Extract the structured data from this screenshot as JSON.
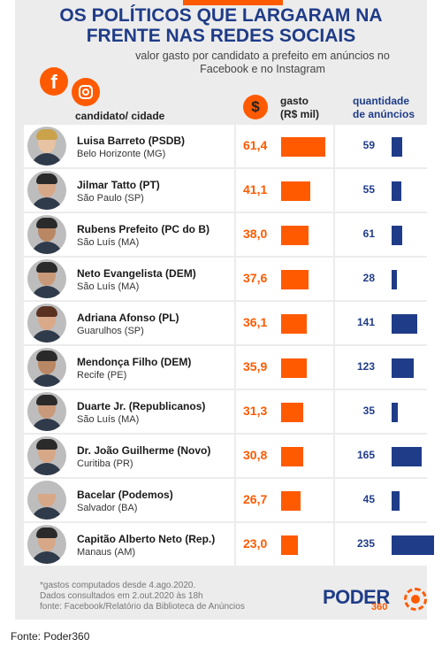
{
  "title_line1": "OS POLÍTICOS QUE LARGARAM NA",
  "title_line2": "FRENTE NAS REDES SOCIAIS",
  "subtitle_line1": "valor gasto por candidato a prefeito em anúncios no",
  "subtitle_line2": "Facebook e no Instagram",
  "icons": {
    "facebook": "facebook-icon",
    "instagram": "instagram-icon",
    "dollar": "dollar-icon"
  },
  "facebook_glyph": "f",
  "dollar_glyph": "$",
  "header": {
    "candidate": "candidato/ cidade",
    "gasto_line1": "gasto",
    "gasto_line2": "(R$ mil)",
    "qtd_line1": "quantidade",
    "qtd_line2": "de anúncios"
  },
  "colors": {
    "orange": "#ff5a00",
    "navy": "#1f3c88",
    "panel": "#ececec"
  },
  "chart_data": {
    "type": "table",
    "gasto_max": 61.4,
    "qtd_max": 235,
    "rows": [
      {
        "name": "Luisa Barreto (PSDB)",
        "city": "Belo Horizonte (MG)",
        "gasto": 61.4,
        "gasto_label": "61,4",
        "qtd": 59,
        "qtd_label": "59"
      },
      {
        "name": "Jilmar Tatto (PT)",
        "city": "São Paulo (SP)",
        "gasto": 41.1,
        "gasto_label": "41,1",
        "qtd": 55,
        "qtd_label": "55"
      },
      {
        "name": "Rubens Prefeito (PC do B)",
        "city": "São Luís (MA)",
        "gasto": 38.0,
        "gasto_label": "38,0",
        "qtd": 61,
        "qtd_label": "61"
      },
      {
        "name": "Neto Evangelista (DEM)",
        "city": "São Luís (MA)",
        "gasto": 37.6,
        "gasto_label": "37,6",
        "qtd": 28,
        "qtd_label": "28"
      },
      {
        "name": "Adriana Afonso (PL)",
        "city": "Guarulhos (SP)",
        "gasto": 36.1,
        "gasto_label": "36,1",
        "qtd": 141,
        "qtd_label": "141"
      },
      {
        "name": "Mendonça Filho (DEM)",
        "city": "Recife (PE)",
        "gasto": 35.9,
        "gasto_label": "35,9",
        "qtd": 123,
        "qtd_label": "123"
      },
      {
        "name": "Duarte Jr. (Republicanos)",
        "city": "São Luís (MA)",
        "gasto": 31.3,
        "gasto_label": "31,3",
        "qtd": 35,
        "qtd_label": "35"
      },
      {
        "name": "Dr. João Guilherme (Novo)",
        "city": "Curitiba (PR)",
        "gasto": 30.8,
        "gasto_label": "30,8",
        "qtd": 165,
        "qtd_label": "165"
      },
      {
        "name": "Bacelar (Podemos)",
        "city": "Salvador (BA)",
        "gasto": 26.7,
        "gasto_label": "26,7",
        "qtd": 45,
        "qtd_label": "45"
      },
      {
        "name": "Capitão Alberto Neto (Rep.)",
        "city": "Manaus (AM)",
        "gasto": 23.0,
        "gasto_label": "23,0",
        "qtd": 235,
        "qtd_label": "235"
      }
    ]
  },
  "notes": {
    "line1": "*gastos computados desde 4.ago.2020.",
    "line2": "Dados consultados em 2.out.2020 às 18h",
    "line3": "fonte: Facebook/Relatório da Biblioteca de Anúncios"
  },
  "logo": {
    "word": "PODER",
    "number": "360"
  },
  "source": "Fonte: Poder360"
}
